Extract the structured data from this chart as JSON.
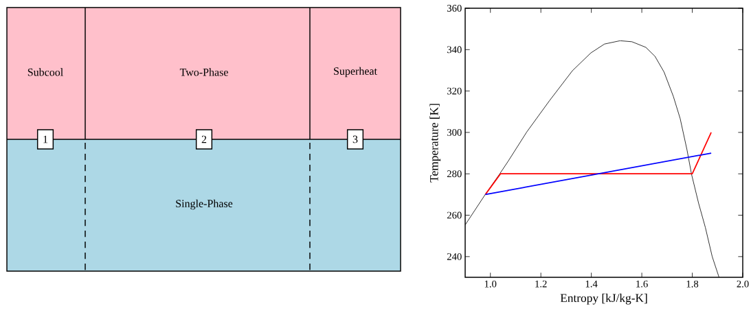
{
  "chart_data": [
    {
      "type": "other",
      "annotations": [
        "Subcool",
        "Two-Phase",
        "Superheat",
        "1",
        "2",
        "3",
        "Single-Phase"
      ]
    },
    {
      "type": "line",
      "xlabel": "Entropy [kJ/kg-K]",
      "ylabel": "Temperature [K]",
      "xlim": [
        0.9,
        2.0
      ],
      "ylim": [
        230,
        360
      ],
      "xticks": [
        {
          "value": 1.0,
          "label": "1.0"
        },
        1.2,
        1.4,
        1.6,
        1.8,
        {
          "value": 2.0,
          "label": "2.0"
        }
      ],
      "yticks": [
        240,
        260,
        280,
        300,
        320,
        340,
        360
      ],
      "series": [
        {
          "color": "#000000",
          "x": [
            0.9,
            0.98,
            1.036,
            1.071,
            1.144,
            1.234,
            1.325,
            1.398,
            1.452,
            1.514,
            1.561,
            1.616,
            1.652,
            1.688,
            1.725,
            1.752,
            1.779,
            1.797,
            1.825,
            1.852,
            1.879,
            1.906
          ],
          "values": [
            255.3,
            270.1,
            279.8,
            286.2,
            300.2,
            315.3,
            329.8,
            338.4,
            342.7,
            344.3,
            343.8,
            341.1,
            336.8,
            329.2,
            317.4,
            306.7,
            291.6,
            279.8,
            265.8,
            254,
            240,
            230
          ]
        },
        {
          "color": "#ff0000",
          "x": [
            0.98,
            1.04,
            1.8,
            1.875
          ],
          "values": [
            270,
            280,
            280,
            300
          ]
        },
        {
          "color": "#0000ff",
          "x": [
            0.98,
            1.875
          ],
          "values": [
            270,
            290
          ]
        }
      ]
    }
  ]
}
